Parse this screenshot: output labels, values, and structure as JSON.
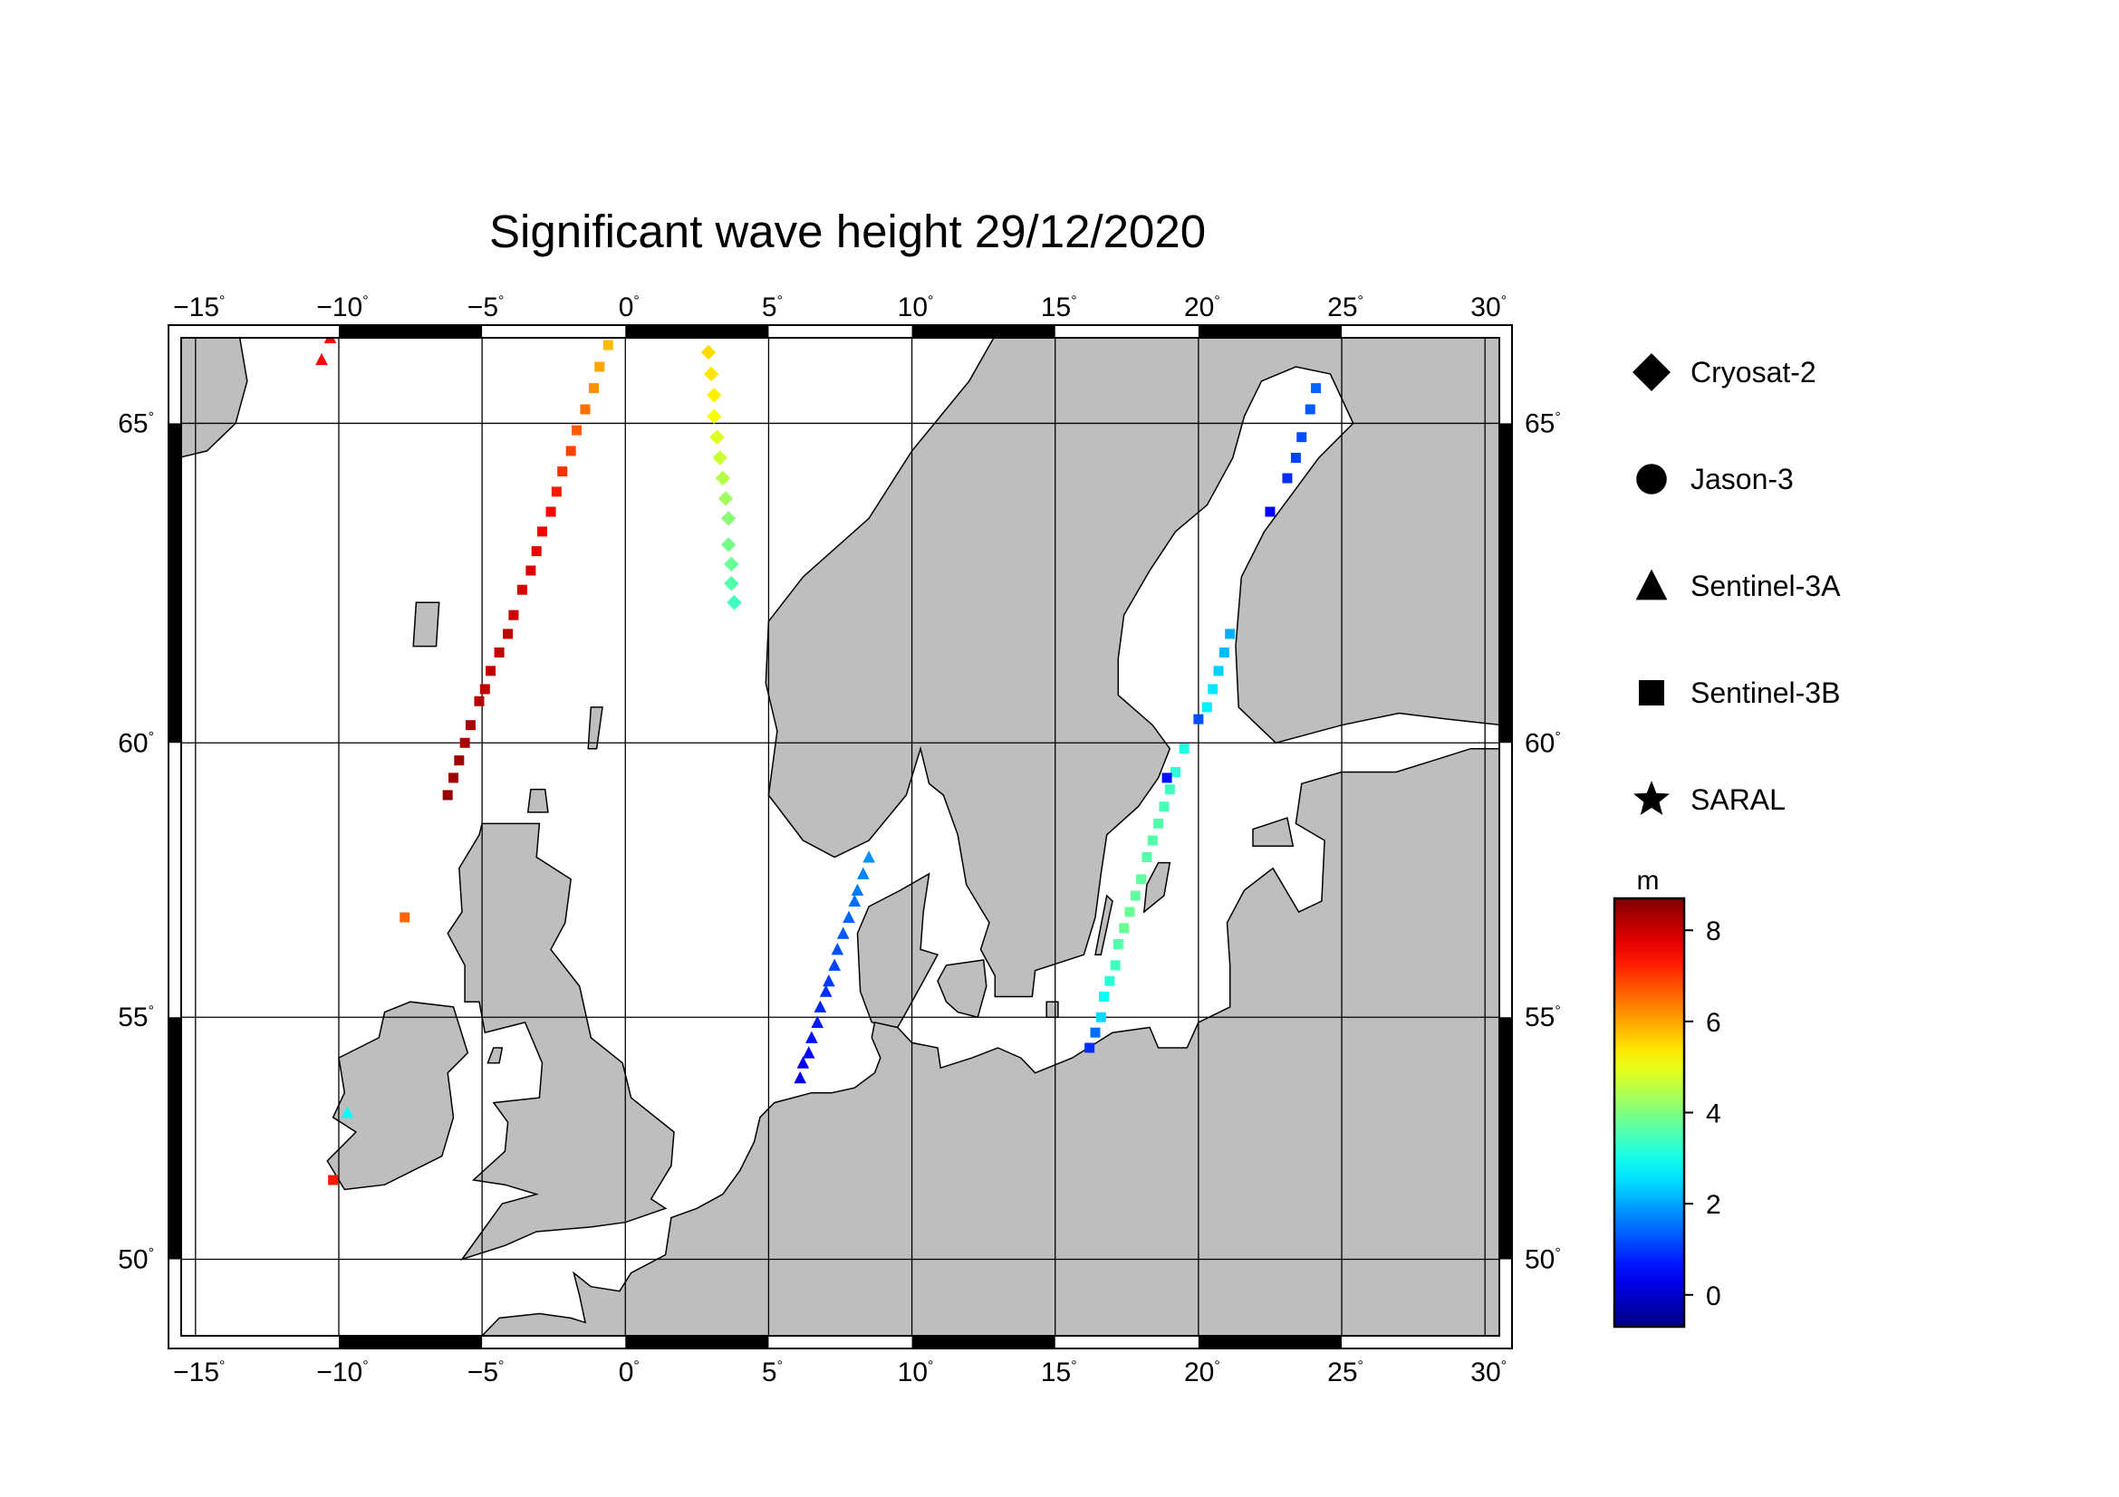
{
  "title": "Significant wave height 29/12/2020",
  "map": {
    "lon_range": [
      -15.5,
      30.5
    ],
    "lat_range": [
      48.3,
      66.2
    ],
    "projection": "mercator",
    "land_color": "#bebebe",
    "sea_color": "#ffffff",
    "lon_ticks": [
      -15,
      -10,
      -5,
      0,
      5,
      10,
      15,
      20,
      25,
      30
    ],
    "lat_ticks": [
      50,
      55,
      60,
      65
    ],
    "lon_tick_labels": [
      "−15",
      "−10",
      "−5",
      "0",
      "5",
      "10",
      "15",
      "20",
      "25",
      "30"
    ],
    "lat_tick_labels": [
      "50",
      "55",
      "60",
      "65"
    ],
    "degree_symbol": "°"
  },
  "legend": {
    "items": [
      {
        "label": "Cryosat-2",
        "marker": "diamond"
      },
      {
        "label": "Jason-3",
        "marker": "circle"
      },
      {
        "label": "Sentinel-3A",
        "marker": "triangle"
      },
      {
        "label": "Sentinel-3B",
        "marker": "square"
      },
      {
        "label": "SARAL",
        "marker": "star"
      }
    ]
  },
  "colorbar": {
    "unit": "m",
    "min": -0.7,
    "max": 8.7,
    "ticks": [
      0,
      2,
      4,
      6,
      8
    ],
    "tick_labels": [
      "0",
      "2",
      "4",
      "6",
      "8"
    ],
    "colormap": "jet"
  },
  "tracks": [
    {
      "satellite": "Sentinel-3B",
      "marker": "square",
      "points": [
        [
          -0.6,
          66.1,
          5.8
        ],
        [
          -0.9,
          65.8,
          6.0
        ],
        [
          -1.1,
          65.5,
          6.2
        ],
        [
          -1.4,
          65.2,
          6.5
        ],
        [
          -1.7,
          64.9,
          6.7
        ],
        [
          -1.9,
          64.6,
          6.9
        ],
        [
          -2.2,
          64.3,
          7.1
        ],
        [
          -2.4,
          64.0,
          7.3
        ],
        [
          -2.6,
          63.7,
          7.5
        ],
        [
          -2.9,
          63.4,
          7.6
        ],
        [
          -3.1,
          63.1,
          7.7
        ],
        [
          -3.3,
          62.8,
          7.8
        ],
        [
          -3.6,
          62.5,
          7.9
        ],
        [
          -3.9,
          62.1,
          8.0
        ],
        [
          -4.1,
          61.8,
          8.1
        ],
        [
          -4.4,
          61.5,
          8.1
        ],
        [
          -4.7,
          61.2,
          8.1
        ],
        [
          -4.9,
          60.9,
          8.1
        ],
        [
          -5.1,
          60.7,
          8.2
        ],
        [
          -5.4,
          60.3,
          8.3
        ],
        [
          -5.6,
          60.0,
          8.3
        ],
        [
          -5.8,
          59.7,
          8.4
        ],
        [
          -6.0,
          59.4,
          8.4
        ],
        [
          -6.2,
          59.1,
          8.5
        ]
      ]
    },
    {
      "satellite": "Sentinel-3A",
      "marker": "triangle",
      "points": [
        [
          -10.3,
          66.2,
          7.5
        ],
        [
          -10.6,
          65.9,
          7.5
        ]
      ]
    },
    {
      "satellite": "Sentinel-3B",
      "marker": "square",
      "points": [
        [
          -7.7,
          56.9,
          6.6
        ]
      ]
    },
    {
      "satellite": "Sentinel-3A",
      "marker": "triangle",
      "points": [
        [
          -9.7,
          53.1,
          2.9
        ]
      ]
    },
    {
      "satellite": "Sentinel-3B",
      "marker": "square",
      "points": [
        [
          -10.2,
          51.7,
          7.3
        ]
      ]
    },
    {
      "satellite": "Cryosat-2",
      "marker": "diamond",
      "points": [
        [
          2.9,
          66.0,
          5.5
        ],
        [
          3.0,
          65.7,
          5.4
        ],
        [
          3.1,
          65.4,
          5.3
        ],
        [
          3.1,
          65.1,
          5.1
        ],
        [
          3.2,
          64.8,
          4.9
        ],
        [
          3.3,
          64.5,
          4.7
        ],
        [
          3.4,
          64.2,
          4.5
        ],
        [
          3.5,
          63.9,
          4.3
        ],
        [
          3.6,
          63.6,
          4.1
        ],
        [
          3.6,
          63.2,
          3.9
        ],
        [
          3.7,
          62.9,
          3.8
        ],
        [
          3.7,
          62.6,
          3.6
        ],
        [
          3.8,
          62.3,
          3.4
        ]
      ]
    },
    {
      "satellite": "Sentinel-3A",
      "marker": "triangle",
      "points": [
        [
          8.5,
          58.0,
          1.8
        ],
        [
          8.3,
          57.7,
          1.7
        ],
        [
          8.1,
          57.4,
          1.6
        ],
        [
          8.0,
          57.2,
          1.5
        ],
        [
          7.8,
          56.9,
          1.4
        ],
        [
          7.6,
          56.6,
          1.3
        ],
        [
          7.4,
          56.3,
          1.2
        ],
        [
          7.3,
          56.0,
          1.1
        ],
        [
          7.1,
          55.7,
          1.0
        ],
        [
          7.0,
          55.5,
          0.9
        ],
        [
          6.8,
          55.2,
          0.8
        ],
        [
          6.7,
          54.9,
          0.7
        ],
        [
          6.5,
          54.6,
          0.6
        ],
        [
          6.4,
          54.3,
          0.5
        ],
        [
          6.2,
          54.1,
          0.4
        ],
        [
          6.1,
          53.8,
          0.3
        ]
      ]
    },
    {
      "satellite": "Sentinel-3B",
      "marker": "square",
      "points": [
        [
          19.5,
          59.9,
          3.1
        ],
        [
          19.2,
          59.5,
          3.2
        ],
        [
          19.0,
          59.2,
          3.4
        ],
        [
          18.8,
          58.9,
          3.5
        ],
        [
          18.6,
          58.6,
          3.6
        ],
        [
          18.4,
          58.3,
          3.6
        ],
        [
          18.2,
          58.0,
          3.6
        ],
        [
          18.0,
          57.6,
          3.7
        ],
        [
          17.8,
          57.3,
          3.7
        ],
        [
          17.6,
          57.0,
          3.8
        ],
        [
          17.4,
          56.7,
          3.8
        ],
        [
          17.2,
          56.4,
          3.6
        ],
        [
          17.1,
          56.0,
          3.4
        ],
        [
          16.9,
          55.7,
          3.2
        ],
        [
          16.7,
          55.4,
          2.9
        ],
        [
          16.6,
          55.0,
          2.5
        ],
        [
          16.4,
          54.7,
          1.5
        ],
        [
          16.2,
          54.4,
          0.9
        ]
      ]
    },
    {
      "satellite": "Sentinel-3B",
      "marker": "square",
      "points": [
        [
          24.1,
          65.5,
          1.4
        ],
        [
          23.9,
          65.2,
          1.3
        ],
        [
          23.6,
          64.8,
          1.2
        ],
        [
          23.4,
          64.5,
          1.1
        ],
        [
          23.1,
          64.2,
          0.9
        ],
        [
          22.5,
          63.7,
          0.5
        ]
      ]
    },
    {
      "satellite": "Sentinel-3B",
      "marker": "square",
      "points": [
        [
          21.1,
          61.8,
          2.1
        ],
        [
          20.9,
          61.5,
          2.2
        ],
        [
          20.7,
          61.2,
          2.4
        ],
        [
          20.5,
          60.9,
          2.6
        ],
        [
          20.3,
          60.6,
          2.7
        ],
        [
          20.0,
          60.4,
          1.2
        ],
        [
          18.9,
          59.4,
          0.6
        ]
      ]
    }
  ]
}
